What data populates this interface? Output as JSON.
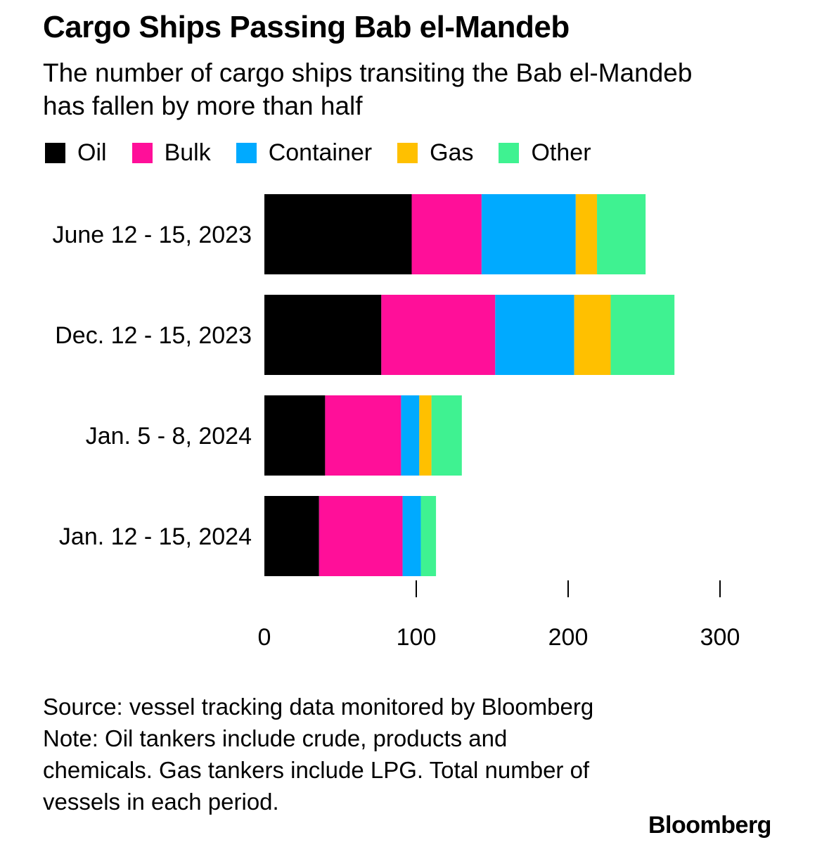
{
  "chart_data": {
    "type": "bar",
    "orientation": "horizontal",
    "stacked": true,
    "title": "Cargo Ships Passing Bab el-Mandeb",
    "subtitle": "The number of cargo ships transiting the Bab el-Mandeb has fallen by more than half",
    "categories": [
      "June 12 - 15, 2023",
      "Dec. 12 - 15, 2023",
      "Jan. 5 - 8, 2024",
      "Jan. 12 - 15, 2024"
    ],
    "series": [
      {
        "name": "Oil",
        "color": "#000000",
        "values": [
          97,
          77,
          40,
          36
        ]
      },
      {
        "name": "Bulk",
        "color": "#ff0f99",
        "values": [
          46,
          75,
          50,
          55
        ]
      },
      {
        "name": "Container",
        "color": "#00aaff",
        "values": [
          62,
          52,
          12,
          12
        ]
      },
      {
        "name": "Gas",
        "color": "#ffc000",
        "values": [
          14,
          24,
          8,
          0
        ]
      },
      {
        "name": "Other",
        "color": "#3ff291",
        "values": [
          32,
          42,
          20,
          10
        ]
      }
    ],
    "xticks": [
      "0",
      "100",
      "200",
      "300"
    ],
    "xlim": [
      0,
      300
    ],
    "legend_position": "top-left",
    "grid": false
  },
  "source": "Source: vessel tracking data monitored by Bloomberg",
  "note": "Note: Oil tankers include crude, products and chemicals. Gas tankers include LPG. Total number of vessels in each period.",
  "brand": "Bloomberg"
}
